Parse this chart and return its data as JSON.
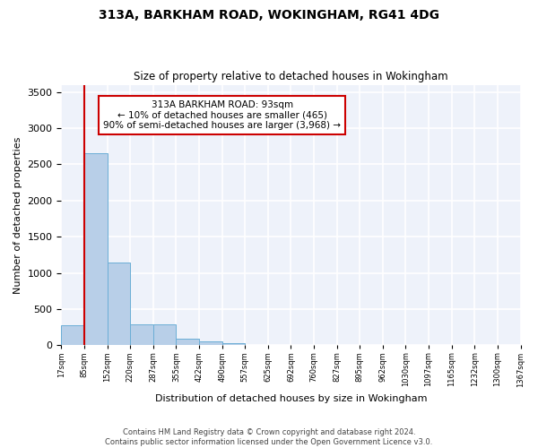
{
  "title": "313A, BARKHAM ROAD, WOKINGHAM, RG41 4DG",
  "subtitle": "Size of property relative to detached houses in Wokingham",
  "xlabel": "Distribution of detached houses by size in Wokingham",
  "ylabel": "Number of detached properties",
  "bar_values": [
    275,
    2650,
    1140,
    285,
    285,
    90,
    55,
    35,
    0,
    0,
    0,
    0,
    0,
    0,
    0,
    0,
    0,
    0,
    0,
    0
  ],
  "bin_labels": [
    "17sqm",
    "85sqm",
    "152sqm",
    "220sqm",
    "287sqm",
    "355sqm",
    "422sqm",
    "490sqm",
    "557sqm",
    "625sqm",
    "692sqm",
    "760sqm",
    "827sqm",
    "895sqm",
    "962sqm",
    "1030sqm",
    "1097sqm",
    "1165sqm",
    "1232sqm",
    "1300sqm",
    "1367sqm"
  ],
  "bar_color": "#b8cfe8",
  "bar_edge_color": "#6baed6",
  "annotation_box_color": "#cc0000",
  "annotation_title": "313A BARKHAM ROAD: 93sqm",
  "annotation_line1": "← 10% of detached houses are smaller (465)",
  "annotation_line2": "90% of semi-detached houses are larger (3,968) →",
  "vline_color": "#cc0000",
  "ylim": [
    0,
    3600
  ],
  "yticks": [
    0,
    500,
    1000,
    1500,
    2000,
    2500,
    3000,
    3500
  ],
  "bg_color": "#eef2fa",
  "grid_color": "#ffffff",
  "footer1": "Contains HM Land Registry data © Crown copyright and database right 2024.",
  "footer2": "Contains public sector information licensed under the Open Government Licence v3.0."
}
